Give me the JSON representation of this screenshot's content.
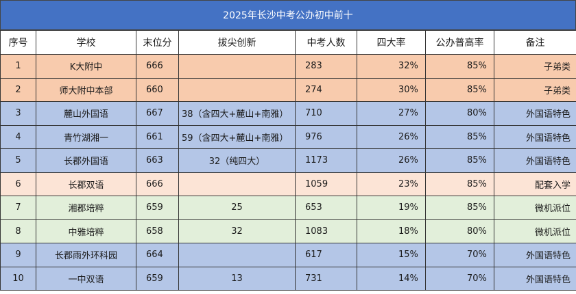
{
  "title": "2025年长沙中考公办初中前十",
  "headers": [
    "序号",
    "学校",
    "末位分",
    "拔尖创新",
    "中考人数",
    "四大率",
    "公办普高率",
    "备注"
  ],
  "colors": {
    "title_bg": "#4472c4",
    "orange": "#f8cbad",
    "blue": "#b4c6e7",
    "peach": "#fce4d6",
    "green": "#e2efda"
  },
  "rows": [
    {
      "no": "1",
      "school": "K大附中",
      "score": "666",
      "bonus": "",
      "count": "283",
      "rate4": "32%",
      "public_rate": "85%",
      "note": "子弟类",
      "color": "orange"
    },
    {
      "no": "2",
      "school": "师大附中本部",
      "score": "660",
      "bonus": "",
      "count": "274",
      "rate4": "30%",
      "public_rate": "85%",
      "note": "子弟类",
      "color": "orange"
    },
    {
      "no": "3",
      "school": "麓山外国语",
      "score": "667",
      "bonus": "38（含四大+麓山+南雅）",
      "count": "710",
      "rate4": "27%",
      "public_rate": "80%",
      "note": "外国语特色",
      "color": "blue"
    },
    {
      "no": "4",
      "school": "青竹湖湘一",
      "score": "661",
      "bonus": "59（含四大+麓山+南雅）",
      "count": "976",
      "rate4": "26%",
      "public_rate": "85%",
      "note": "外国语特色",
      "color": "blue"
    },
    {
      "no": "5",
      "school": "长郡外国语",
      "score": "663",
      "bonus": "32（纯四大）",
      "count": "1173",
      "rate4": "26%",
      "public_rate": "85%",
      "note": "外国语特色",
      "color": "blue"
    },
    {
      "no": "6",
      "school": "长郡双语",
      "score": "666",
      "bonus": "",
      "count": "1059",
      "rate4": "23%",
      "public_rate": "85%",
      "note": "配套入学",
      "color": "peach"
    },
    {
      "no": "7",
      "school": "湘郡培粹",
      "score": "659",
      "bonus": "25",
      "count": "653",
      "rate4": "19%",
      "public_rate": "85%",
      "note": "微机派位",
      "color": "green"
    },
    {
      "no": "8",
      "school": "中雅培粹",
      "score": "658",
      "bonus": "32",
      "count": "1083",
      "rate4": "18%",
      "public_rate": "80%",
      "note": "微机派位",
      "color": "green"
    },
    {
      "no": "9",
      "school": "长郡雨外环科园",
      "score": "664",
      "bonus": "",
      "count": "617",
      "rate4": "15%",
      "public_rate": "70%",
      "note": "外国语特色",
      "color": "blue"
    },
    {
      "no": "10",
      "school": "一中双语",
      "score": "659",
      "bonus": "13",
      "count": "731",
      "rate4": "14%",
      "public_rate": "70%",
      "note": "外国语特色",
      "color": "blue"
    }
  ]
}
